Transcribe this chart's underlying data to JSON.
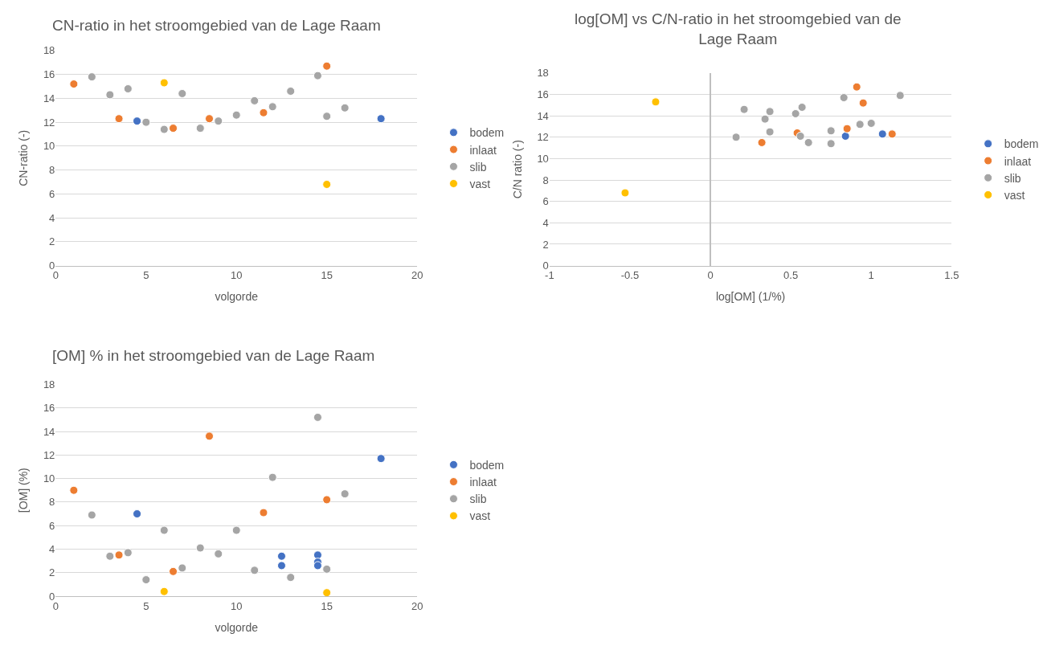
{
  "chart_data": [
    {
      "type": "scatter",
      "title": "CN-ratio in het stroomgebied van de Lage Raam",
      "xlabel": "volgorde",
      "ylabel": "CN-ratio (-)",
      "xlim": [
        0,
        20
      ],
      "xticks": [
        0,
        5,
        10,
        15,
        20
      ],
      "ylim": [
        0,
        18
      ],
      "yticks": [
        0,
        2,
        4,
        6,
        8,
        10,
        12,
        14,
        16,
        18
      ],
      "grid": "y",
      "legend": "right",
      "marker": "circle",
      "series": [
        {
          "name": "bodem",
          "color": "#4472c4",
          "x": [
            4.5,
            18
          ],
          "values": [
            12.1,
            12.3
          ]
        },
        {
          "name": "inlaat",
          "color": "#ed7d31",
          "x": [
            1,
            3.5,
            6.5,
            8.5,
            11.5,
            15
          ],
          "values": [
            15.2,
            12.3,
            11.5,
            12.3,
            12.8,
            16.7
          ]
        },
        {
          "name": "slib",
          "color": "#a5a5a5",
          "x": [
            2,
            3,
            4,
            5,
            6,
            7,
            8,
            9,
            10,
            11,
            12,
            13,
            14.5,
            15,
            16
          ],
          "values": [
            15.8,
            14.3,
            14.8,
            12.0,
            11.4,
            14.4,
            11.5,
            12.1,
            12.6,
            13.8,
            13.3,
            14.6,
            15.9,
            12.5,
            13.2
          ]
        },
        {
          "name": "vast",
          "color": "#ffc000",
          "x": [
            6,
            15
          ],
          "values": [
            15.3,
            6.8
          ]
        }
      ]
    },
    {
      "type": "scatter",
      "title": "log[OM] vs C/N-ratio in het stroomgebied van de Lage Raam",
      "xlabel": "log[OM] (1/%)",
      "ylabel": "C/N ratio (-)",
      "xlim": [
        -1,
        1.5
      ],
      "xticks": [
        -1,
        -0.5,
        0,
        0.5,
        1,
        1.5
      ],
      "ylim": [
        0,
        18
      ],
      "yticks": [
        0,
        2,
        4,
        6,
        8,
        10,
        12,
        14,
        16,
        18
      ],
      "grid": "y",
      "legend": "right",
      "marker": "circle",
      "series": [
        {
          "name": "bodem",
          "color": "#4472c4",
          "x": [
            0.84,
            1.07
          ],
          "values": [
            12.1,
            12.3
          ]
        },
        {
          "name": "inlaat",
          "color": "#ed7d31",
          "x": [
            0.32,
            0.54,
            0.85,
            0.91,
            0.95,
            1.13
          ],
          "values": [
            11.5,
            12.4,
            12.8,
            16.7,
            15.2,
            12.3
          ]
        },
        {
          "name": "slib",
          "color": "#a5a5a5",
          "x": [
            0.16,
            0.21,
            0.34,
            0.37,
            0.37,
            0.53,
            0.57,
            0.56,
            0.61,
            0.75,
            0.75,
            0.83,
            0.93,
            1.0,
            1.18
          ],
          "values": [
            12.0,
            14.6,
            13.7,
            14.4,
            12.5,
            14.2,
            14.8,
            12.1,
            11.5,
            12.6,
            11.4,
            15.7,
            13.2,
            13.3,
            15.9
          ]
        },
        {
          "name": "vast",
          "color": "#ffc000",
          "x": [
            -0.34,
            -0.53
          ],
          "values": [
            15.3,
            6.8
          ]
        }
      ]
    },
    {
      "type": "scatter",
      "title": "[OM] % in het stroomgebied van de Lage Raam",
      "xlabel": "volgorde",
      "ylabel": "[OM] (%)",
      "xlim": [
        0,
        20
      ],
      "xticks": [
        0,
        5,
        10,
        15,
        20
      ],
      "ylim": [
        0,
        18
      ],
      "yticks": [
        0,
        2,
        4,
        6,
        8,
        10,
        12,
        14,
        16,
        18
      ],
      "grid": "y",
      "legend": "right",
      "marker": "circle",
      "series": [
        {
          "name": "bodem",
          "color": "#4472c4",
          "x": [
            4.5,
            12.5,
            12.5,
            14.5,
            14.5,
            14.5,
            18
          ],
          "values": [
            7.0,
            3.4,
            2.6,
            3.5,
            2.9,
            2.6,
            11.7
          ]
        },
        {
          "name": "inlaat",
          "color": "#ed7d31",
          "x": [
            1,
            3.5,
            6.5,
            8.5,
            11.5,
            15
          ],
          "values": [
            9.0,
            3.5,
            2.1,
            13.6,
            7.1,
            8.2
          ]
        },
        {
          "name": "slib",
          "color": "#a5a5a5",
          "x": [
            2,
            3,
            4,
            5,
            6,
            7,
            8,
            9,
            10,
            11,
            12,
            13,
            14.5,
            15,
            16
          ],
          "values": [
            6.9,
            3.4,
            3.7,
            1.4,
            5.6,
            2.4,
            4.1,
            3.6,
            5.6,
            2.2,
            10.1,
            1.6,
            15.2,
            2.3,
            8.7
          ]
        },
        {
          "name": "vast",
          "color": "#ffc000",
          "x": [
            6,
            15
          ],
          "values": [
            0.4,
            0.3
          ]
        }
      ]
    }
  ]
}
